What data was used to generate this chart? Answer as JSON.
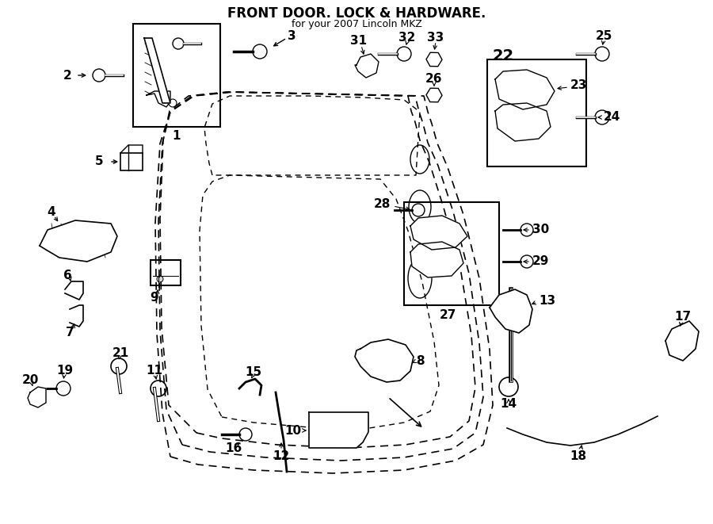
{
  "title": "FRONT DOOR. LOCK & HARDWARE.",
  "subtitle": "for your 2007 Lincoln MKZ",
  "bg_color": "#ffffff",
  "line_color": "#000000",
  "figsize": [
    9.0,
    6.61
  ],
  "dpi": 100
}
